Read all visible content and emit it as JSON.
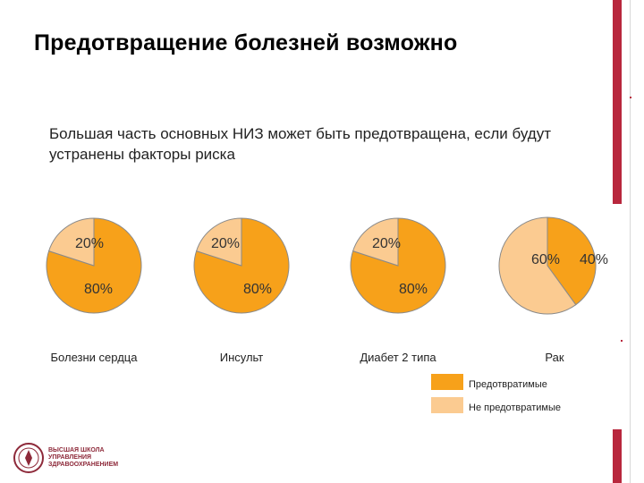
{
  "title": "Предотвращение болезней возможно",
  "subtitle": "Большая часть основных НИЗ может быть предотвращена, если будут устранены факторы риска",
  "legend": {
    "preventable": "Предотвратимые",
    "not_preventable": "Не предотвратимые"
  },
  "colors": {
    "preventable": "#f7a11a",
    "not_preventable": "#fbcb91",
    "accent": "#b8273d"
  },
  "logo": {
    "text": "ВЫСШАЯ ШКОЛА УПРАВЛЕНИЯ ЗДРАВООХРАНЕНИЕМ",
    "icon": "seal-icon"
  },
  "chart_data": [
    {
      "type": "pie",
      "title": "Болезни сердца",
      "slices": [
        {
          "name": "Предотвратимые",
          "value": 80,
          "label": "80%"
        },
        {
          "name": "Не предотвратимые",
          "value": 20,
          "label": "20%"
        }
      ]
    },
    {
      "type": "pie",
      "title": "Инсульт",
      "slices": [
        {
          "name": "Предотвратимые",
          "value": 80,
          "label": "80%"
        },
        {
          "name": "Не предотвратимые",
          "value": 20,
          "label": "20%"
        }
      ]
    },
    {
      "type": "pie",
      "title": "Диабет 2 типа",
      "slices": [
        {
          "name": "Предотвратимые",
          "value": 80,
          "label": "80%"
        },
        {
          "name": "Не предотвратимые",
          "value": 20,
          "label": "20%"
        }
      ]
    },
    {
      "type": "pie",
      "title": "Рак",
      "slices": [
        {
          "name": "Предотвратимые",
          "value": 40,
          "label": "40%"
        },
        {
          "name": "Не предотвратимые",
          "value": 60,
          "label": "60%"
        }
      ]
    }
  ]
}
